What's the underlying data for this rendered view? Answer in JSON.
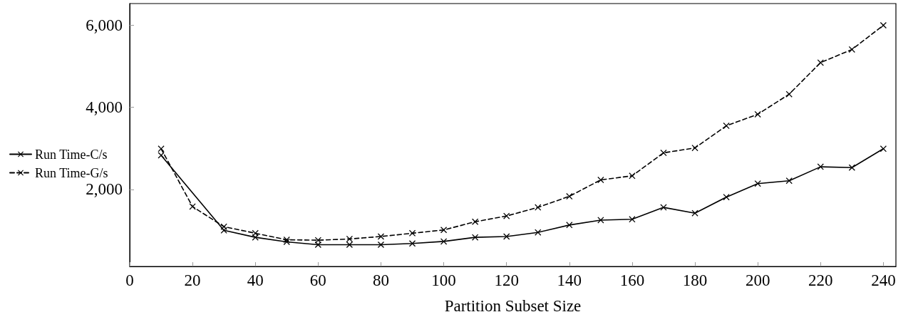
{
  "chart_data": {
    "type": "line",
    "xlabel": "Partition Subset Size",
    "x": [
      10,
      20,
      30,
      40,
      50,
      60,
      70,
      80,
      90,
      100,
      110,
      120,
      130,
      140,
      150,
      160,
      170,
      180,
      190,
      200,
      210,
      220,
      230,
      240
    ],
    "series": [
      {
        "name": "Run Time-C/s",
        "color": "#000000",
        "line_style": "solid",
        "x": [
          10,
          30,
          40,
          50,
          60,
          70,
          80,
          90,
          100,
          110,
          120,
          130,
          140,
          150,
          160,
          170,
          180,
          190,
          200,
          210,
          220,
          230,
          240
        ],
        "values": [
          2830,
          1000,
          830,
          720,
          650,
          650,
          650,
          680,
          730,
          830,
          850,
          950,
          1130,
          1250,
          1270,
          1560,
          1420,
          1810,
          2140,
          2210,
          2550,
          2530,
          2990
        ]
      },
      {
        "name": "Run Time-G/s",
        "color": "#000000",
        "line_style": "dashed",
        "values": [
          2990,
          1580,
          1090,
          930,
          770,
          760,
          790,
          850,
          930,
          1010,
          1210,
          1350,
          1560,
          1830,
          2230,
          2330,
          2890,
          3010,
          3550,
          3830,
          4320,
          5090,
          5410,
          6000
        ]
      }
    ],
    "marker": "cross",
    "legend": "left",
    "grid": false,
    "xlim": [
      0,
      244
    ],
    "xticks": [
      0,
      20,
      40,
      60,
      80,
      100,
      120,
      140,
      160,
      180,
      200,
      220,
      240
    ],
    "ylim": [
      120,
      6530
    ],
    "yticks": [
      {
        "value": 2000,
        "label": "2,000"
      },
      {
        "value": 4000,
        "label": "4,000"
      },
      {
        "value": 6000,
        "label": "6,000"
      }
    ]
  }
}
